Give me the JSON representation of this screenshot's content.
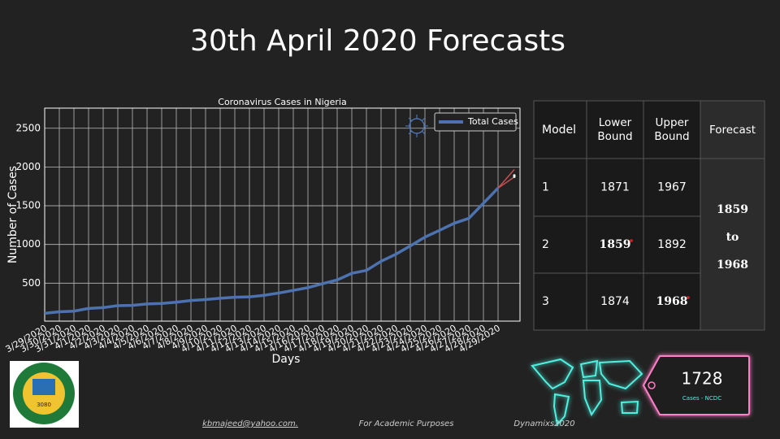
{
  "slide_title": "30th April 2020 Forecasts",
  "chart_data": {
    "type": "line",
    "title": "Coronavirus Cases in Nigeria",
    "x_label": "Days",
    "y_label": "Number of Cases",
    "categories": [
      "3/29/2020",
      "3/30/2020",
      "3/31/2020",
      "4/1/2020",
      "4/2/2020",
      "4/3/2020",
      "4/4/2020",
      "4/5/2020",
      "4/6/2020",
      "4/7/2020",
      "4/8/2020",
      "4/9/2020",
      "4/10/2020",
      "4/11/2020",
      "4/12/2020",
      "4/13/2020",
      "4/14/2020",
      "4/15/2020",
      "4/16/2020",
      "4/17/2020",
      "4/18/2020",
      "4/19/2020",
      "4/20/2020",
      "4/21/2020",
      "4/22/2020",
      "4/23/2020",
      "4/24/2020",
      "4/25/2020",
      "4/26/2020",
      "4/27/2020",
      "4/28/2020",
      "4/29/2020"
    ],
    "series": [
      {
        "name": "Total Cases",
        "color": "#4c72b0",
        "values": [
          111,
          131,
          139,
          174,
          184,
          210,
          214,
          232,
          238,
          254,
          276,
          288,
          305,
          318,
          323,
          343,
          373,
          407,
          442,
          493,
          542,
          627,
          665,
          782,
          873,
          981,
          1095,
          1182,
          1273,
          1337,
          1532,
          1728
        ]
      }
    ],
    "ylim": [
      10,
      2760
    ],
    "yticks": [
      500,
      1000,
      1500,
      2000,
      2500
    ],
    "grid": true,
    "legend": "upper right"
  },
  "table": {
    "header": [
      "Model",
      "Lower Bound",
      "Upper Bound",
      "Forecast"
    ],
    "rows": [
      [
        1,
        1871,
        1967
      ],
      [
        2,
        1859,
        1892
      ],
      [
        3,
        1874,
        1968
      ]
    ],
    "forecast": [
      "1859",
      "to",
      "1968"
    ]
  },
  "badge": {
    "value": 1728,
    "label": "Cases - NCDC"
  },
  "logo_text": "3080",
  "footer": [
    "kbmajeed@yahoo.com.",
    "For Academic Purposes",
    "Dynamixs2020"
  ]
}
